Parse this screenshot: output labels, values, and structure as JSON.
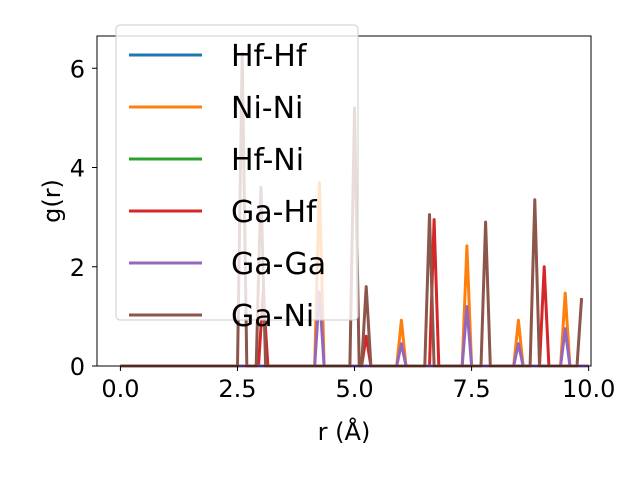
{
  "chart_data": {
    "type": "line",
    "title": "",
    "xlabel": "r (Å)",
    "ylabel": "g(r)",
    "xlim": [
      -0.5,
      10.05
    ],
    "ylim": [
      0,
      6.65
    ],
    "xticks": [
      0.0,
      2.5,
      5.0,
      7.5,
      10.0
    ],
    "xtick_labels": [
      "0.0",
      "2.5",
      "5.0",
      "7.5",
      "10.0"
    ],
    "yticks": [
      0,
      2,
      4,
      6
    ],
    "ytick_labels": [
      "0",
      "2",
      "4",
      "6"
    ],
    "grid": false,
    "legend_position": "top-left",
    "series": [
      {
        "name": "Hf-Hf",
        "color": "#1f77b4",
        "points": [
          [
            0,
            0
          ],
          [
            10,
            0
          ]
        ]
      },
      {
        "name": "Ni-Ni",
        "color": "#ff7f0e",
        "points": [
          [
            0,
            0
          ],
          [
            4.15,
            0
          ],
          [
            4.25,
            3.7
          ],
          [
            4.35,
            0
          ],
          [
            5.9,
            0
          ],
          [
            6.0,
            0.92
          ],
          [
            6.1,
            0
          ],
          [
            7.3,
            0
          ],
          [
            7.4,
            2.42
          ],
          [
            7.5,
            0
          ],
          [
            8.4,
            0
          ],
          [
            8.5,
            0.92
          ],
          [
            8.6,
            0
          ],
          [
            9.4,
            0
          ],
          [
            9.5,
            1.47
          ],
          [
            9.6,
            0
          ],
          [
            10,
            0
          ]
        ]
      },
      {
        "name": "Hf-Ni",
        "color": "#2ca02c",
        "points": [
          [
            0,
            0
          ],
          [
            10,
            0
          ]
        ]
      },
      {
        "name": "Ga-Hf",
        "color": "#d62728",
        "points": [
          [
            0,
            0
          ],
          [
            2.95,
            0
          ],
          [
            3.05,
            1.5
          ],
          [
            3.15,
            0
          ],
          [
            5.15,
            0
          ],
          [
            5.25,
            0.6
          ],
          [
            5.35,
            0
          ],
          [
            6.6,
            0
          ],
          [
            6.7,
            2.95
          ],
          [
            6.8,
            0
          ],
          [
            8.95,
            0
          ],
          [
            9.05,
            2.0
          ],
          [
            9.15,
            0
          ],
          [
            10,
            0
          ]
        ]
      },
      {
        "name": "Ga-Ga",
        "color": "#9467bd",
        "points": [
          [
            0,
            0
          ],
          [
            4.15,
            0
          ],
          [
            4.25,
            1.5
          ],
          [
            4.35,
            0
          ],
          [
            5.9,
            0
          ],
          [
            6.0,
            0.45
          ],
          [
            6.1,
            0
          ],
          [
            7.3,
            0
          ],
          [
            7.4,
            1.2
          ],
          [
            7.5,
            0
          ],
          [
            8.4,
            0
          ],
          [
            8.5,
            0.45
          ],
          [
            8.6,
            0
          ],
          [
            9.4,
            0
          ],
          [
            9.5,
            0.75
          ],
          [
            9.6,
            0
          ],
          [
            10,
            0
          ]
        ]
      },
      {
        "name": "Ga-Ni",
        "color": "#8c564b",
        "points": [
          [
            0,
            0
          ],
          [
            2.5,
            0
          ],
          [
            2.6,
            6.3
          ],
          [
            2.7,
            0
          ],
          [
            2.9,
            0
          ],
          [
            3.0,
            3.6
          ],
          [
            3.1,
            0
          ],
          [
            4.9,
            0
          ],
          [
            5.0,
            5.2
          ],
          [
            5.1,
            0
          ],
          [
            5.15,
            0
          ],
          [
            5.25,
            1.6
          ],
          [
            5.35,
            0
          ],
          [
            6.5,
            0
          ],
          [
            6.6,
            3.05
          ],
          [
            6.7,
            0
          ],
          [
            7.7,
            0
          ],
          [
            7.8,
            2.9
          ],
          [
            7.9,
            0
          ],
          [
            8.75,
            0
          ],
          [
            8.85,
            3.35
          ],
          [
            8.95,
            0
          ],
          [
            9.75,
            0
          ],
          [
            9.85,
            1.37
          ]
        ]
      }
    ]
  }
}
